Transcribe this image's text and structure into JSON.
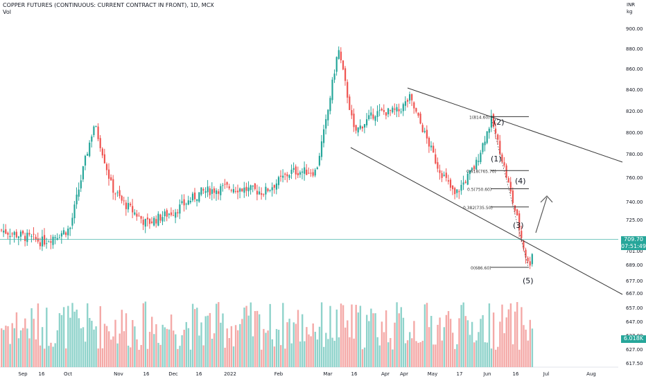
{
  "header": {
    "title": "COPPER FUTURES (CONTINUOUS: CURRENT CONTRACT IN FRONT), 1D, MCX",
    "volume_label": "Vol"
  },
  "axis": {
    "currency": "INR",
    "unit": "kg",
    "price_ticks": [
      "900.00",
      "880.00",
      "860.00",
      "840.00",
      "820.00",
      "800.00",
      "780.00",
      "760.00",
      "740.00",
      "725.00",
      "701.00",
      "689.00",
      "677.00",
      "667.00",
      "657.00",
      "647.00",
      "637.00",
      "627.00",
      "617.50"
    ],
    "time_ticks": [
      "Sep",
      "16",
      "Oct",
      "Nov",
      "16",
      "Dec",
      "16",
      "2022",
      "Feb",
      "Mar",
      "16",
      "Apr",
      "Apr",
      "May",
      "17",
      "Jun",
      "16",
      "Jul",
      "Aug"
    ]
  },
  "badges": {
    "price": "709.70",
    "countdown": "07:51:49",
    "volume": "6.018K"
  },
  "fib_levels": [
    "1(814.60)",
    "0.618(765.70)",
    "0.5(750.60)",
    "0.382(735.50)",
    "0(686.60)"
  ],
  "wave_labels": [
    "(1)",
    "(2)",
    "(3)",
    "(4)",
    "(5)"
  ],
  "colors": {
    "up": "#26a69a",
    "down": "#ef5350",
    "vol_up": "#8fd3cb",
    "vol_down": "#f4a9a7",
    "price_line": "#26a69a",
    "drawing": "#333333"
  },
  "chart_data": {
    "type": "candlestick",
    "title": "COPPER FUTURES (CONTINUOUS: CURRENT CONTRACT IN FRONT), 1D, MCX",
    "y_unit": "INR / kg",
    "last_price": 709.7,
    "price_series": [
      [
        "Sep",
        717
      ],
      [
        "Sep 16",
        708
      ],
      [
        "Oct",
        718
      ],
      [
        "Oct mid",
        808
      ],
      [
        "Oct late",
        752
      ],
      [
        "Nov",
        740
      ],
      [
        "Nov 16",
        722
      ],
      [
        "Dec",
        732
      ],
      [
        "Dec 16",
        748
      ],
      [
        "2022",
        752
      ],
      [
        "Jan mid",
        748
      ],
      [
        "Feb",
        765
      ],
      [
        "Feb late",
        765
      ],
      [
        "Mar",
        812
      ],
      [
        "Mar 8",
        880
      ],
      [
        "Mar 16",
        800
      ],
      [
        "Apr",
        818
      ],
      [
        "Apr mid",
        820
      ],
      [
        "Apr late",
        832
      ],
      [
        "May",
        770
      ],
      [
        "May 17",
        745
      ],
      [
        "May late",
        770
      ],
      [
        "Jun",
        812
      ],
      [
        "Jun mid",
        760
      ],
      [
        "Jun late",
        686.6
      ],
      [
        "Jun end",
        709.7
      ]
    ],
    "fibonacci": [
      {
        "ratio": 1,
        "price": 814.6
      },
      {
        "ratio": 0.618,
        "price": 765.7
      },
      {
        "ratio": 0.5,
        "price": 750.6
      },
      {
        "ratio": 0.382,
        "price": 735.5
      },
      {
        "ratio": 0,
        "price": 686.6
      }
    ],
    "volume_k_last": 6.018
  }
}
